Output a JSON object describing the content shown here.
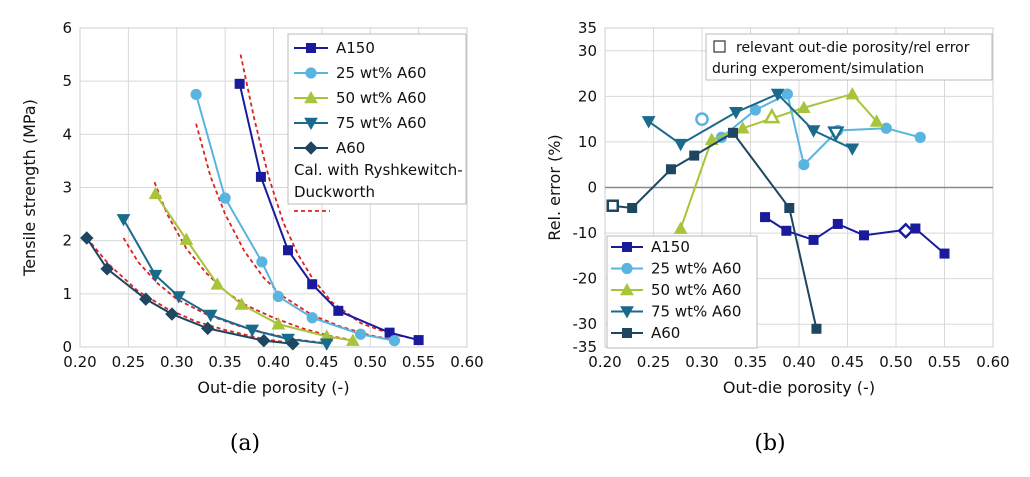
{
  "chart_data": [
    {
      "type": "line",
      "panel_label": "(a)",
      "xlabel": "Out-die porosity (-)",
      "ylabel": "Tensile strength (MPa)",
      "xlim": [
        0.2,
        0.6
      ],
      "ylim": [
        0,
        6
      ],
      "x_ticks": [
        "0.20",
        "0.25",
        "0.30",
        "0.35",
        "0.40",
        "0.45",
        "0.50",
        "0.55",
        "0.60"
      ],
      "y_ticks": [
        "0",
        "1",
        "2",
        "3",
        "4",
        "5",
        "6"
      ],
      "grid": true,
      "legend_position": "top-right",
      "series": [
        {
          "name": "A150",
          "color": "#1a1a9c",
          "marker": "square",
          "x": [
            0.365,
            0.387,
            0.415,
            0.44,
            0.467,
            0.52,
            0.55
          ],
          "y": [
            4.95,
            3.2,
            1.82,
            1.18,
            0.68,
            0.27,
            0.13
          ]
        },
        {
          "name": "25 wt% A60",
          "color": "#5ab4e0",
          "marker": "circle",
          "x": [
            0.32,
            0.35,
            0.388,
            0.405,
            0.44,
            0.49,
            0.525
          ],
          "y": [
            4.75,
            2.8,
            1.6,
            0.95,
            0.55,
            0.24,
            0.12
          ]
        },
        {
          "name": "50 wt% A60",
          "color": "#a8c43a",
          "marker": "triangle-up",
          "x": [
            0.278,
            0.31,
            0.342,
            0.367,
            0.405,
            0.455,
            0.482
          ],
          "y": [
            2.88,
            2.02,
            1.18,
            0.8,
            0.43,
            0.2,
            0.12
          ]
        },
        {
          "name": "75 wt% A60",
          "color": "#1a6a8c",
          "marker": "triangle-down",
          "x": [
            0.245,
            0.278,
            0.302,
            0.335,
            0.378,
            0.415,
            0.455
          ],
          "y": [
            2.4,
            1.35,
            0.95,
            0.6,
            0.32,
            0.15,
            0.06
          ]
        },
        {
          "name": "A60",
          "color": "#1e4660",
          "marker": "diamond",
          "x": [
            0.207,
            0.228,
            0.268,
            0.295,
            0.332,
            0.39,
            0.42
          ],
          "y": [
            2.05,
            1.47,
            0.9,
            0.62,
            0.35,
            0.12,
            0.06
          ]
        }
      ],
      "fit_legend": "Cal. with Ryshkewitch-Duckworth",
      "fit_color": "#e02020",
      "fit_curves": [
        {
          "x": [
            0.366,
            0.38,
            0.395,
            0.41,
            0.425,
            0.44,
            0.46,
            0.49,
            0.52,
            0.55
          ],
          "y": [
            5.5,
            4.3,
            3.2,
            2.35,
            1.75,
            1.3,
            0.85,
            0.45,
            0.25,
            0.14
          ]
        },
        {
          "name_ref": "25 wt% A60",
          "x": [
            0.32,
            0.335,
            0.35,
            0.37,
            0.39,
            0.41,
            0.44,
            0.47,
            0.5,
            0.525
          ],
          "y": [
            4.2,
            3.2,
            2.5,
            1.8,
            1.3,
            0.95,
            0.6,
            0.38,
            0.22,
            0.13
          ]
        },
        {
          "x": [
            0.277,
            0.29,
            0.31,
            0.33,
            0.35,
            0.37,
            0.4,
            0.43,
            0.46,
            0.482
          ],
          "y": [
            3.1,
            2.5,
            1.85,
            1.4,
            1.05,
            0.8,
            0.55,
            0.35,
            0.2,
            0.13
          ]
        },
        {
          "x": [
            0.245,
            0.26,
            0.28,
            0.3,
            0.33,
            0.36,
            0.39,
            0.42,
            0.455
          ],
          "y": [
            2.05,
            1.6,
            1.2,
            0.9,
            0.62,
            0.42,
            0.27,
            0.15,
            0.07
          ]
        },
        {
          "x": [
            0.207,
            0.23,
            0.26,
            0.29,
            0.32,
            0.35,
            0.39,
            0.42
          ],
          "y": [
            2.05,
            1.55,
            1.05,
            0.72,
            0.48,
            0.32,
            0.15,
            0.07
          ]
        }
      ]
    },
    {
      "type": "line",
      "panel_label": "(b)",
      "xlabel": "Out-die porosity (-)",
      "ylabel": "Rel. error (%)",
      "xlim": [
        0.2,
        0.6
      ],
      "ylim": [
        -35,
        35
      ],
      "x_ticks": [
        "0.20",
        "0.25",
        "0.30",
        "0.35",
        "0.40",
        "0.45",
        "0.50",
        "0.55",
        "0.60"
      ],
      "y_ticks": [
        {
          "label": "35",
          "value": 35
        },
        {
          "label": "30",
          "value": 30
        },
        {
          "label": "20",
          "value": 20
        },
        {
          "label": "10",
          "value": 10
        },
        {
          "label": "0",
          "value": 0
        },
        {
          "label": "-10",
          "value": -10
        },
        {
          "label": "-20",
          "value": -20
        },
        {
          "label": "-30",
          "value": -30
        },
        {
          "label": "-35",
          "value": -35
        }
      ],
      "grid": true,
      "legend_position": "bottom-left",
      "annotation": [
        "relevant out-die porosity/rel error",
        "during experoment/simulation"
      ],
      "series": [
        {
          "name": "A150",
          "color": "#1a1a9c",
          "marker": "square",
          "x": [
            0.365,
            0.387,
            0.415,
            0.44,
            0.467,
            0.52,
            0.55
          ],
          "y": [
            -6.5,
            -9.5,
            -11.5,
            -8,
            -10.5,
            -9,
            -14.5
          ]
        },
        {
          "name": "25 wt% A60",
          "color": "#5ab4e0",
          "marker": "circle",
          "x": [
            0.32,
            0.355,
            0.388,
            0.405,
            0.44,
            0.49,
            0.525
          ],
          "y": [
            11,
            17,
            20.5,
            5,
            12.5,
            13,
            11
          ]
        },
        {
          "name": "50 wt% A60",
          "color": "#a8c43a",
          "marker": "triangle-up",
          "x": [
            0.278,
            0.31,
            0.342,
            0.405,
            0.455,
            0.48
          ],
          "y": [
            -9,
            10.5,
            13,
            17.5,
            20.5,
            14.5
          ]
        },
        {
          "name": "75 wt% A60",
          "color": "#1a6a8c",
          "marker": "triangle-down",
          "x": [
            0.245,
            0.278,
            0.335,
            0.378,
            0.415,
            0.455
          ],
          "y": [
            14.5,
            9.5,
            16.5,
            20.5,
            12.5,
            8.5
          ]
        },
        {
          "name": "A60",
          "color": "#1e4660",
          "marker": "square",
          "x": [
            0.207,
            0.228,
            0.268,
            0.292,
            0.332,
            0.39,
            0.418
          ],
          "y": [
            -4,
            -4.5,
            4,
            7,
            12,
            -4.5,
            -31
          ]
        }
      ],
      "highlighted_points": [
        {
          "series": "A150",
          "marker": "diamond",
          "x": 0.51,
          "y": -9.5
        },
        {
          "series": "25 wt% A60",
          "marker": "circle",
          "x": 0.3,
          "y": 15
        },
        {
          "series": "50 wt% A60",
          "marker": "triangle-up",
          "x": 0.372,
          "y": 15.5
        },
        {
          "series": "75 wt% A60",
          "marker": "triangle-down",
          "x": 0.438,
          "y": 12
        },
        {
          "series": "A60",
          "marker": "square",
          "x": 0.208,
          "y": -4
        }
      ]
    }
  ]
}
